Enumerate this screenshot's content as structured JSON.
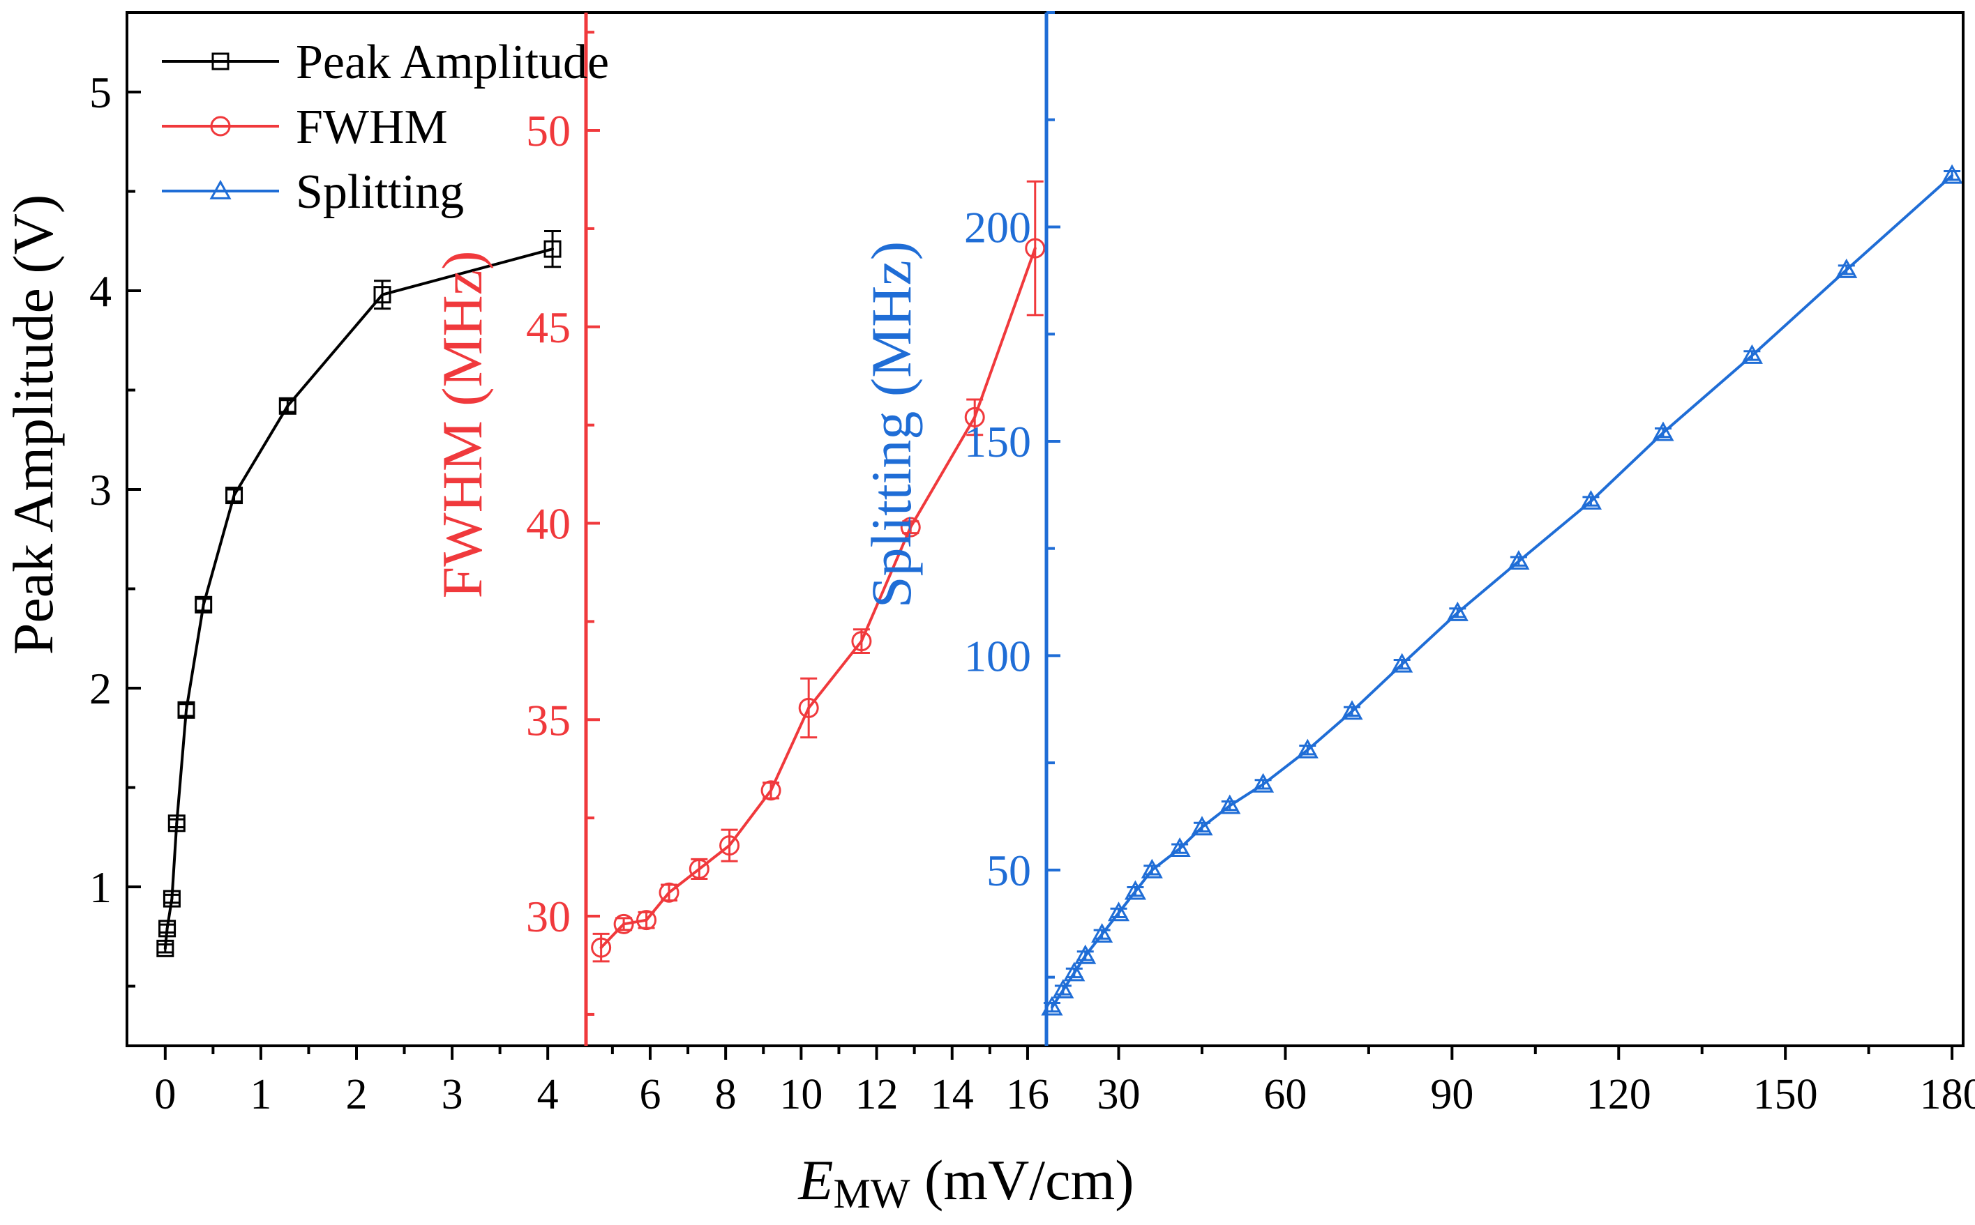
{
  "chart_data": {
    "type": "line",
    "xlabel_main": "E",
    "xlabel_sub": "MW",
    "xlabel_unit": " (mV/cm)",
    "panels": [
      {
        "name": "peak-amplitude",
        "ylabel": "Peak Amplitude (V)",
        "color": "#000000",
        "marker": "square",
        "xlim": [
          -0.4,
          4.4
        ],
        "xticks": [
          0,
          1,
          2,
          3,
          4
        ],
        "ylim": [
          0.2,
          5.4
        ],
        "yticks": [
          1,
          2,
          3,
          4,
          5
        ],
        "series": {
          "name": "Peak Amplitude",
          "x": [
            0.0,
            0.02,
            0.07,
            0.12,
            0.22,
            0.4,
            0.72,
            1.28,
            2.27,
            4.05
          ],
          "y": [
            0.69,
            0.79,
            0.94,
            1.32,
            1.89,
            2.42,
            2.97,
            3.42,
            3.98,
            4.21
          ],
          "err": [
            0.02,
            0.02,
            0.02,
            0.02,
            0.03,
            0.03,
            0.03,
            0.03,
            0.07,
            0.09
          ]
        }
      },
      {
        "name": "fwhm",
        "ylabel": "FWHM (MHz)",
        "color": "#f0393c",
        "marker": "circle",
        "xlim": [
          4.3,
          16.5
        ],
        "xticks": [
          6,
          8,
          10,
          12,
          14,
          16
        ],
        "ylim": [
          26.7,
          53
        ],
        "yticks": [
          30,
          35,
          40,
          45,
          50
        ],
        "series": {
          "name": "FWHM",
          "x": [
            4.7,
            5.3,
            5.9,
            6.5,
            7.3,
            8.1,
            9.2,
            10.2,
            11.6,
            12.9,
            14.6,
            16.2
          ],
          "y": [
            29.2,
            29.8,
            29.9,
            30.6,
            31.2,
            31.8,
            33.2,
            35.3,
            37.0,
            39.9,
            42.7,
            47.0
          ],
          "err": [
            0.35,
            0.15,
            0.2,
            0.2,
            0.25,
            0.4,
            0.2,
            0.75,
            0.3,
            0.15,
            0.45,
            1.7
          ]
        }
      },
      {
        "name": "splitting",
        "ylabel": "Splitting (MHz)",
        "color": "#1f6dd6",
        "marker": "triangle",
        "xlim": [
          17,
          182
        ],
        "xticks": [
          30,
          60,
          90,
          120,
          150,
          180
        ],
        "ylim": [
          9,
          250
        ],
        "yticks": [
          50,
          100,
          150,
          200
        ],
        "series": {
          "name": "Splitting",
          "x": [
            18,
            20,
            22,
            24,
            27,
            30,
            33,
            36,
            41,
            45,
            50,
            56,
            64,
            72,
            81,
            91,
            102,
            115,
            128,
            144,
            161,
            180
          ],
          "y": [
            18,
            22,
            26,
            30,
            35,
            40,
            45,
            50,
            55,
            60,
            65,
            70,
            78,
            87,
            98,
            110,
            122,
            136,
            152,
            170,
            190,
            212
          ],
          "err": [
            1,
            1,
            1,
            1,
            1,
            1,
            1,
            1,
            1,
            1,
            1,
            1,
            1,
            1,
            1,
            1,
            1,
            1,
            1,
            1,
            1,
            1
          ]
        }
      }
    ],
    "legend": {
      "position": "top-left",
      "entries": [
        {
          "label": "Peak Amplitude",
          "color": "#000000",
          "marker": "square"
        },
        {
          "label": "FWHM",
          "color": "#f0393c",
          "marker": "circle"
        },
        {
          "label": "Splitting",
          "color": "#1f6dd6",
          "marker": "triangle"
        }
      ]
    }
  }
}
